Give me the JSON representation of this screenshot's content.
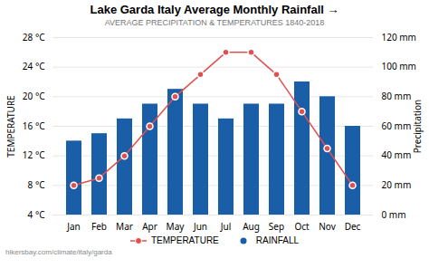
{
  "chart_data": {
    "type": "bar",
    "title": "Lake Garda Italy Average Monthly Rainfall →",
    "subtitle": "AVERAGE PRECIPITATION & TEMPERATURES 1840-2018",
    "categories": [
      "Jan",
      "Feb",
      "Mar",
      "Apr",
      "May",
      "Jun",
      "Jul",
      "Aug",
      "Sep",
      "Oct",
      "Nov",
      "Dec"
    ],
    "series": [
      {
        "name": "TEMPERATURE",
        "type": "line",
        "marker": "circle",
        "color": "#e05050",
        "values": [
          8,
          9,
          12,
          16,
          20,
          23,
          26,
          26,
          23,
          18,
          13,
          8
        ]
      },
      {
        "name": "RAINFALL",
        "type": "bar",
        "axis": "y2",
        "color": "#1a5ea8",
        "values": [
          50,
          55,
          65,
          75,
          85,
          75,
          65,
          75,
          75,
          90,
          80,
          60
        ]
      }
    ],
    "ylabel": "TEMPERATURE",
    "y2label": "Precipitation",
    "ylim": [
      4,
      28
    ],
    "yticks": [
      {
        "value": 4,
        "label": "4 °C"
      },
      {
        "value": 8,
        "label": "8 °C"
      },
      {
        "value": 12,
        "label": "12 °C"
      },
      {
        "value": 16,
        "label": "16 °C"
      },
      {
        "value": 20,
        "label": "20 °C"
      },
      {
        "value": 24,
        "label": "24 °C"
      },
      {
        "value": 28,
        "label": "28 °C"
      }
    ],
    "y2lim": [
      0,
      120
    ],
    "y2ticks": [
      {
        "value": 0,
        "label": "0 mm"
      },
      {
        "value": 20,
        "label": "20 mm"
      },
      {
        "value": 40,
        "label": "40 mm"
      },
      {
        "value": 60,
        "label": "60 mm"
      },
      {
        "value": 80,
        "label": "80 mm"
      },
      {
        "value": 100,
        "label": "100 mm"
      },
      {
        "value": 120,
        "label": "120 mm"
      }
    ],
    "grid": true,
    "legend": "bottom",
    "annotations": [
      "hikersbay.com/climate/italy/garda"
    ]
  }
}
